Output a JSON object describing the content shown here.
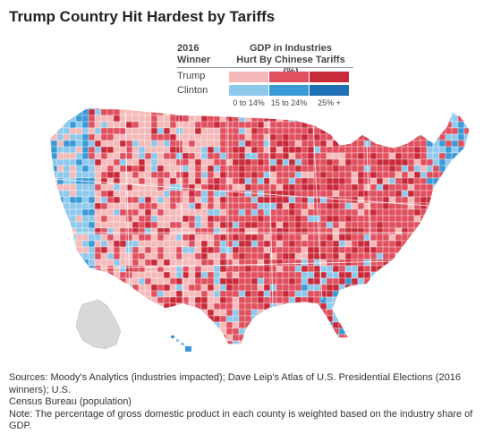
{
  "title": "Trump Country Hit Hardest by Tariffs",
  "legend": {
    "winner_heading": [
      "2016",
      "Winner"
    ],
    "gdp_heading": [
      "GDP in Industries",
      "Hurt By Chinese Tariffs (%)"
    ],
    "rows": [
      {
        "label": "Trump",
        "colors": [
          "#f6b9b9",
          "#e0505f",
          "#c92a3a"
        ]
      },
      {
        "label": "Clinton",
        "colors": [
          "#8ec9ec",
          "#3a9ad8",
          "#1f6fb5"
        ]
      }
    ],
    "ranges": [
      "0 to 14%",
      "15 to 24%",
      "25% +"
    ]
  },
  "sources": {
    "line1": "Sources: Moody's Analytics (industries impacted); Dave Leip's Atlas of U.S. Presidential Elections (2016 winners); U.S.",
    "line2": "Census Bureau (population)",
    "line3": "Note: The percentage of gross domestic product in each county is weighted based on the industry share of GDP."
  },
  "map_colors": {
    "trump_low": "#f6b9b9",
    "trump_mid": "#e0505f",
    "trump_high": "#c92a3a",
    "clinton_low": "#8ec9ec",
    "clinton_mid": "#3a9ad8",
    "clinton_high": "#1f6fb5",
    "no_data": "#d8d8d8"
  }
}
